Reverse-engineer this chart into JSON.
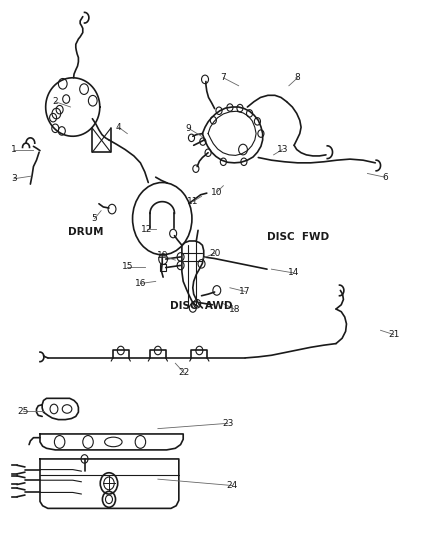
{
  "bg_color": "#ffffff",
  "text_color": "#1a1a1a",
  "line_color": "#1a1a1a",
  "label_fontsize": 6.5,
  "section_fontsize": 7.5,
  "lw_main": 1.2,
  "lw_thin": 0.8,
  "sections": {
    "DRUM": [
      0.195,
      0.565
    ],
    "DISC  FWD": [
      0.68,
      0.555
    ],
    "DISC  AWD": [
      0.46,
      0.425
    ]
  },
  "callouts": {
    "1": {
      "text": [
        0.03,
        0.72
      ],
      "part": [
        0.075,
        0.72
      ]
    },
    "2": {
      "text": [
        0.125,
        0.81
      ],
      "part": [
        0.16,
        0.8
      ]
    },
    "3": {
      "text": [
        0.03,
        0.665
      ],
      "part": [
        0.07,
        0.67
      ]
    },
    "4": {
      "text": [
        0.27,
        0.762
      ],
      "part": [
        0.29,
        0.75
      ]
    },
    "5": {
      "text": [
        0.215,
        0.59
      ],
      "part": [
        0.23,
        0.605
      ]
    },
    "6": {
      "text": [
        0.88,
        0.668
      ],
      "part": [
        0.84,
        0.675
      ]
    },
    "7": {
      "text": [
        0.51,
        0.855
      ],
      "part": [
        0.545,
        0.84
      ]
    },
    "8": {
      "text": [
        0.68,
        0.855
      ],
      "part": [
        0.66,
        0.84
      ]
    },
    "9": {
      "text": [
        0.43,
        0.76
      ],
      "part": [
        0.46,
        0.745
      ]
    },
    "10": {
      "text": [
        0.495,
        0.64
      ],
      "part": [
        0.51,
        0.652
      ]
    },
    "11": {
      "text": [
        0.44,
        0.622
      ],
      "part": [
        0.46,
        0.632
      ]
    },
    "12": {
      "text": [
        0.335,
        0.57
      ],
      "part": [
        0.355,
        0.57
      ]
    },
    "13": {
      "text": [
        0.645,
        0.72
      ],
      "part": [
        0.625,
        0.71
      ]
    },
    "14": {
      "text": [
        0.67,
        0.488
      ],
      "part": [
        0.62,
        0.495
      ]
    },
    "15": {
      "text": [
        0.29,
        0.5
      ],
      "part": [
        0.33,
        0.5
      ]
    },
    "16": {
      "text": [
        0.32,
        0.468
      ],
      "part": [
        0.355,
        0.472
      ]
    },
    "17": {
      "text": [
        0.56,
        0.453
      ],
      "part": [
        0.525,
        0.46
      ]
    },
    "18": {
      "text": [
        0.535,
        0.42
      ],
      "part": [
        0.51,
        0.43
      ]
    },
    "19": {
      "text": [
        0.37,
        0.52
      ],
      "part": [
        0.4,
        0.512
      ]
    },
    "20": {
      "text": [
        0.49,
        0.525
      ],
      "part": [
        0.462,
        0.515
      ]
    },
    "21": {
      "text": [
        0.9,
        0.372
      ],
      "part": [
        0.87,
        0.38
      ]
    },
    "22": {
      "text": [
        0.42,
        0.3
      ],
      "part": [
        0.4,
        0.318
      ]
    },
    "23": {
      "text": [
        0.52,
        0.205
      ],
      "part": [
        0.36,
        0.195
      ]
    },
    "24": {
      "text": [
        0.53,
        0.088
      ],
      "part": [
        0.36,
        0.1
      ]
    },
    "25": {
      "text": [
        0.052,
        0.228
      ],
      "part": [
        0.1,
        0.228
      ]
    }
  }
}
